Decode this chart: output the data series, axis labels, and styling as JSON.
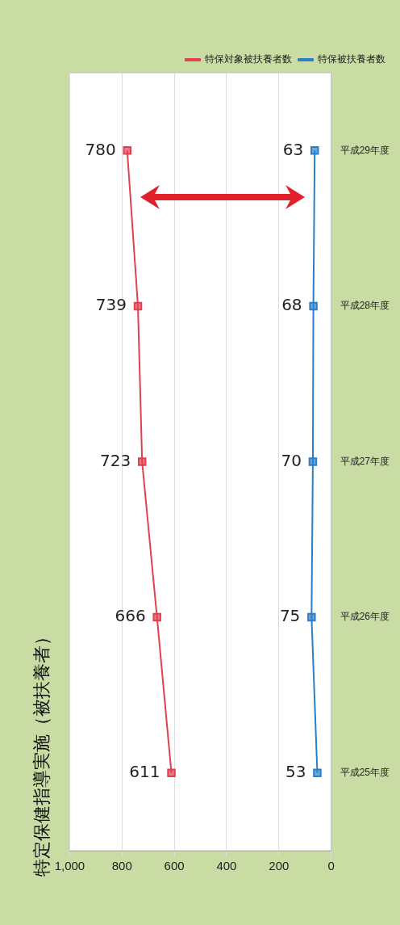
{
  "chart_data": {
    "type": "line",
    "title": "特定保健指導実施（被扶養者）",
    "orientation": "horizontal",
    "categories": [
      "平成29年度",
      "平成28年度",
      "平成27年度",
      "平成26年度",
      "平成25年度"
    ],
    "series": [
      {
        "name": "特保対象被扶養者数",
        "color": "#e0404f",
        "values": [
          780,
          739,
          723,
          666,
          611
        ]
      },
      {
        "name": "特保被扶養者数",
        "color": "#2a7fc8",
        "values": [
          63,
          68,
          70,
          75,
          53
        ]
      }
    ],
    "xlim": [
      1000,
      0
    ],
    "xticks": [
      0,
      200,
      400,
      600,
      800,
      {
        "value": 1000,
        "label": "1,000"
      }
    ],
    "grid": "x",
    "legend": "top right",
    "marker": "square",
    "data_labels": true
  }
}
